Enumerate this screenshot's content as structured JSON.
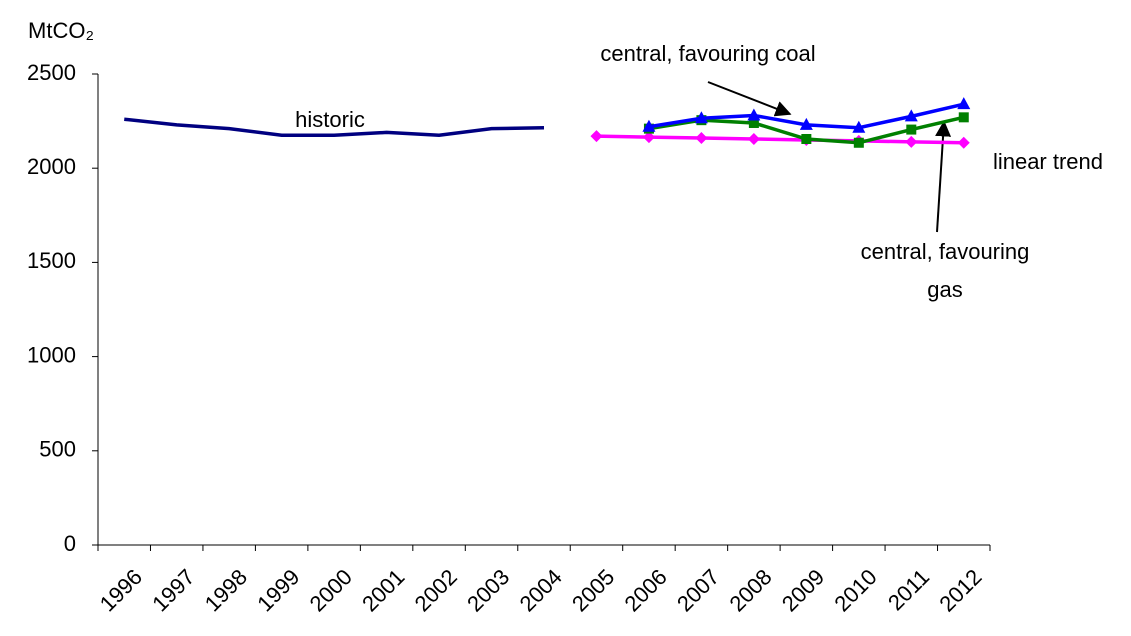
{
  "chart_data": {
    "type": "line",
    "y_label": "MtCO₂",
    "categories": [
      "1996",
      "1997",
      "1998",
      "1999",
      "2000",
      "2001",
      "2002",
      "2003",
      "2004",
      "2005",
      "2006",
      "2007",
      "2008",
      "2009",
      "2010",
      "2011",
      "2012"
    ],
    "series": [
      {
        "name": "historic",
        "color": "#000080",
        "marker": "none",
        "values": [
          2260,
          2230,
          2210,
          2175,
          2175,
          2190,
          2175,
          2210,
          2215,
          null,
          null,
          null,
          null,
          null,
          null,
          null,
          null
        ]
      },
      {
        "name": "linear trend",
        "color": "#ff00ff",
        "marker": "diamond",
        "values": [
          null,
          null,
          null,
          null,
          null,
          null,
          null,
          null,
          null,
          2170,
          2165,
          2160,
          2155,
          2150,
          2145,
          2140,
          2135
        ]
      },
      {
        "name": "central, favouring gas",
        "color": "#008000",
        "marker": "square",
        "values": [
          null,
          null,
          null,
          null,
          null,
          null,
          null,
          null,
          null,
          null,
          2210,
          2255,
          2240,
          2155,
          2135,
          2205,
          2270
        ]
      },
      {
        "name": "central, favouring coal",
        "color": "#0000ff",
        "marker": "triangle",
        "values": [
          null,
          null,
          null,
          null,
          null,
          null,
          null,
          null,
          null,
          null,
          2220,
          2265,
          2280,
          2230,
          2215,
          2275,
          2340
        ]
      }
    ],
    "ylim": [
      0,
      2500
    ],
    "yticks": [
      0,
      500,
      1000,
      1500,
      2000,
      2500
    ],
    "grid": false
  }
}
